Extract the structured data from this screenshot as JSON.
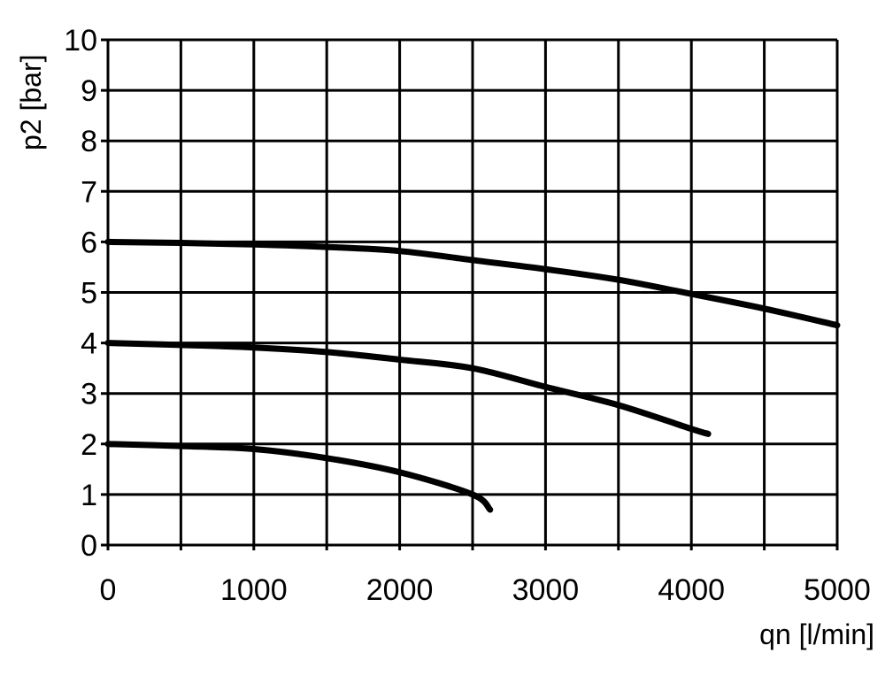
{
  "chart_data": {
    "type": "line",
    "title": "",
    "xlabel": "qn [l/min]",
    "ylabel": "p2 [bar]",
    "xlim": [
      0,
      5000
    ],
    "ylim": [
      0,
      10
    ],
    "grid": true,
    "x_major_ticks": [
      "0",
      "1000",
      "2000",
      "3000",
      "4000",
      "5000"
    ],
    "x_grid_step": 500,
    "y_ticks": [
      "0",
      "1",
      "2",
      "3",
      "4",
      "5",
      "6",
      "7",
      "8",
      "9",
      "10"
    ],
    "line_color": "#000000",
    "series": [
      {
        "x": [
          0,
          500,
          1000,
          1500,
          2000,
          2500,
          3000,
          3500,
          4000,
          4500,
          5000
        ],
        "y": [
          6.0,
          5.98,
          5.95,
          5.9,
          5.82,
          5.64,
          5.46,
          5.25,
          4.97,
          4.68,
          4.35
        ]
      },
      {
        "x": [
          0,
          500,
          1000,
          1500,
          2000,
          2500,
          3000,
          3500,
          4000,
          4115
        ],
        "y": [
          4.0,
          3.96,
          3.91,
          3.82,
          3.67,
          3.5,
          3.13,
          2.77,
          2.3,
          2.2
        ]
      },
      {
        "x": [
          0,
          500,
          1000,
          1500,
          2000,
          2500,
          2620
        ],
        "y": [
          2.0,
          1.96,
          1.9,
          1.72,
          1.44,
          1.0,
          0.7
        ]
      }
    ]
  }
}
